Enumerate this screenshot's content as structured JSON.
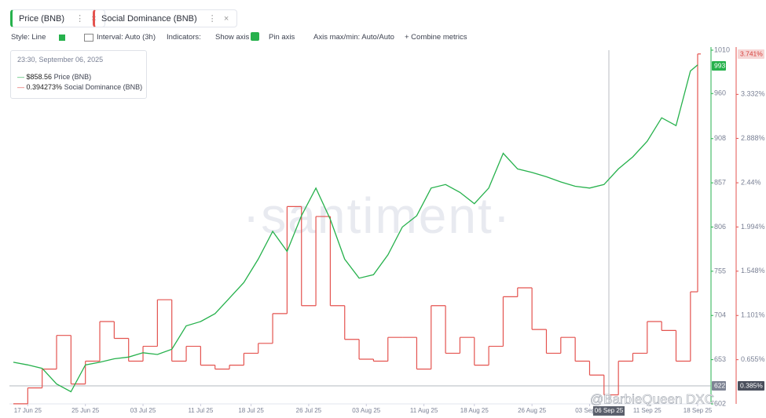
{
  "tabs": [
    "Price (BNB)",
    "Social Dominance (BNB)"
  ],
  "toolbar": [
    "Style: Line",
    "Interval: Auto (3h)",
    "Indicators:",
    "Show axis",
    "Pin axis",
    "Axis max/min: Auto/Auto",
    "+ Combine metrics"
  ],
  "tooltip": {
    "time": "23:30, September 06, 2025",
    "rows": [
      {
        "value": "$858.56",
        "name": "Price (BNB)"
      },
      {
        "value": "0.394273%",
        "name": "Social Dominance (BNB)"
      }
    ]
  },
  "watermark": "·santiment·",
  "overlay": "@BarbieQueen DXC",
  "tags": {
    "price_last": "993",
    "dominance_last": "3.741%",
    "price_cursor": "622",
    "dominance_cursor": "0.385%",
    "date_cursor": "06 Sep 25"
  },
  "chart_data": {
    "type": "line",
    "x": [
      "2025-06-15",
      "2025-06-17",
      "2025-06-19",
      "2025-06-21",
      "2025-06-23",
      "2025-06-25",
      "2025-06-27",
      "2025-06-29",
      "2025-07-01",
      "2025-07-03",
      "2025-07-05",
      "2025-07-07",
      "2025-07-09",
      "2025-07-11",
      "2025-07-13",
      "2025-07-15",
      "2025-07-17",
      "2025-07-19",
      "2025-07-21",
      "2025-07-23",
      "2025-07-25",
      "2025-07-27",
      "2025-07-29",
      "2025-07-31",
      "2025-08-02",
      "2025-08-04",
      "2025-08-06",
      "2025-08-08",
      "2025-08-10",
      "2025-08-12",
      "2025-08-14",
      "2025-08-16",
      "2025-08-18",
      "2025-08-20",
      "2025-08-22",
      "2025-08-24",
      "2025-08-26",
      "2025-08-28",
      "2025-08-30",
      "2025-09-01",
      "2025-09-03",
      "2025-09-05",
      "2025-09-07",
      "2025-09-09",
      "2025-09-11",
      "2025-09-13",
      "2025-09-15",
      "2025-09-17",
      "2025-09-18"
    ],
    "xlim": [
      "2025-06-15",
      "2025-09-18"
    ],
    "xticks": [
      {
        "value": "2025-06-17",
        "label": "17 Jun 25"
      },
      {
        "value": "2025-06-25",
        "label": "25 Jun 25"
      },
      {
        "value": "2025-07-03",
        "label": "03 Jul 25"
      },
      {
        "value": "2025-07-11",
        "label": "11 Jul 25"
      },
      {
        "value": "2025-07-18",
        "label": "18 Jul 25"
      },
      {
        "value": "2025-07-26",
        "label": "26 Jul 25"
      },
      {
        "value": "2025-08-03",
        "label": "03 Aug 25"
      },
      {
        "value": "2025-08-11",
        "label": "11 Aug 25"
      },
      {
        "value": "2025-08-18",
        "label": "18 Aug 25"
      },
      {
        "value": "2025-08-26",
        "label": "26 Aug 25"
      },
      {
        "value": "2025-09-03",
        "label": "03 Sep 25"
      },
      {
        "value": "2025-09-11",
        "label": "11 Sep 25"
      },
      {
        "value": "2025-09-18",
        "label": "18 Sep 25"
      }
    ],
    "ylim": [
      602,
      1010
    ],
    "yticks": [
      1010,
      960,
      908,
      857,
      806,
      755,
      704,
      653,
      602
    ],
    "y2lim": [
      0.209,
      3.778
    ],
    "y2ticks": [
      {
        "value": 3.332,
        "label": "3.332%"
      },
      {
        "value": 2.888,
        "label": "2.888%"
      },
      {
        "value": 2.44,
        "label": "2.44%"
      },
      {
        "value": 1.994,
        "label": "1.994%"
      },
      {
        "value": 1.548,
        "label": "1.548%"
      },
      {
        "value": 1.101,
        "label": "1.101%"
      },
      {
        "value": 0.655,
        "label": "0.655%"
      }
    ],
    "series": [
      {
        "name": "Price (BNB)",
        "color": "#26b14c",
        "values": [
          650,
          647,
          643,
          625,
          616,
          647,
          650,
          654,
          656,
          661,
          659,
          665,
          692,
          697,
          706,
          724,
          742,
          769,
          801,
          778,
          819,
          851,
          815,
          769,
          747,
          751,
          774,
          806,
          819,
          851,
          855,
          846,
          833,
          851,
          891,
          873,
          869,
          864,
          858,
          853,
          851,
          855,
          873,
          887,
          905,
          932,
          923,
          986,
          993
        ]
      },
      {
        "name": "Social Dominance (BNB)",
        "color": "#e4534f",
        "axis": "y2",
        "step": true,
        "values": [
          0.21,
          0.37,
          0.56,
          0.9,
          0.41,
          0.64,
          1.04,
          0.87,
          0.64,
          0.79,
          1.26,
          0.64,
          0.79,
          0.6,
          0.56,
          0.6,
          0.72,
          0.82,
          1.12,
          2.2,
          1.2,
          2.1,
          1.2,
          0.86,
          0.66,
          0.64,
          0.88,
          0.88,
          0.56,
          1.2,
          0.72,
          0.88,
          0.6,
          0.79,
          1.29,
          1.38,
          0.96,
          0.72,
          0.88,
          0.64,
          0.5,
          0.3,
          0.64,
          0.72,
          1.04,
          0.95,
          0.64,
          1.34,
          3.74
        ]
      }
    ]
  }
}
